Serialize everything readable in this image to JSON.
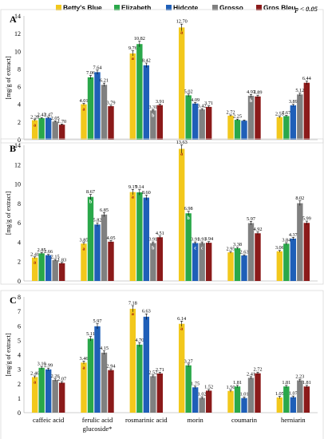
{
  "chart_data": {
    "type": "bar",
    "significance": "p < 0.05",
    "series": [
      {
        "name": "Betty's Blue",
        "color": "#f2c81c"
      },
      {
        "name": "Elizabeth",
        "color": "#2aa84a"
      },
      {
        "name": "Hidcote",
        "color": "#1f5fb8"
      },
      {
        "name": "Grosso",
        "color": "#808080"
      },
      {
        "name": "Gros Bleu",
        "color": "#8b1a1a"
      }
    ],
    "categories": [
      "caffeic acid",
      "ferulic acid glucoside*",
      "rosmarinic acid",
      "morin",
      "coumarin",
      "herniarin"
    ],
    "category_lines": [
      [
        "caffeic acid"
      ],
      [
        "ferulic acid",
        "glucoside*"
      ],
      [
        "rosmarinic acid"
      ],
      [
        "morin"
      ],
      [
        "coumarin"
      ],
      [
        "herniarin"
      ]
    ],
    "panels": [
      {
        "label": "A",
        "ylabel": "[mg/g of extract]",
        "ylim": [
          0,
          14
        ],
        "ticks": [
          "0",
          "2",
          "4",
          "6",
          "8",
          "10",
          "12",
          "14"
        ],
        "values": [
          [
            2.2,
            2.43,
            2.47,
            2.05,
            1.7
          ],
          [
            4.01,
            7.06,
            7.64,
            6.21,
            3.79
          ],
          [
            9.76,
            10.82,
            8.42,
            3.31,
            3.91
          ],
          [
            12.7,
            5.02,
            4.09,
            3.42,
            3.71
          ],
          [
            2.72,
            2.25,
            2.15,
            4.97,
            4.89
          ],
          [
            2.55,
            2.67,
            3.89,
            5.12,
            6.44
          ]
        ],
        "value_labels": [
          [
            "2.20",
            "2.43",
            "2.47",
            "2.05",
            "1.70"
          ],
          [
            "4.01",
            "7.06",
            "7.64",
            "6.21",
            "3.79"
          ],
          [
            "9.76",
            "10.82",
            "8.42",
            "3.31",
            "3.91"
          ],
          [
            "12.70",
            "5.02",
            "4.09",
            "3.42",
            "3.71"
          ],
          [
            "2.72",
            "2.25",
            "",
            "4.97",
            "4.89"
          ],
          [
            "2.55",
            "2.67",
            "3.89",
            "5.12",
            "6.44"
          ]
        ],
        "letters": [
          [
            "a",
            "",
            "",
            "",
            ""
          ],
          [
            "a",
            "",
            "",
            "",
            ""
          ],
          [
            "a",
            "",
            "",
            "b",
            ""
          ],
          [
            "a",
            "",
            "",
            "",
            ""
          ],
          [
            "",
            "",
            "",
            "b",
            ""
          ],
          [
            "",
            "",
            "",
            "",
            ""
          ]
        ]
      },
      {
        "label": "B",
        "ylabel": "[mg/g of extract]",
        "ylim": [
          0,
          14
        ],
        "ticks": [
          "0",
          "2",
          "4",
          "6",
          "8",
          "10",
          "12",
          "14"
        ],
        "values": [
          [
            2.41,
            2.85,
            2.66,
            2.15,
            1.83
          ],
          [
            3.85,
            8.67,
            5.82,
            6.85,
            4.05
          ],
          [
            9.17,
            9.14,
            8.6,
            3.91,
            4.51
          ],
          [
            13.63,
            6.98,
            3.91,
            3.91,
            3.94
          ],
          [
            2.95,
            3.38,
            2.63,
            5.97,
            4.92
          ],
          [
            3.06,
            3.84,
            4.37,
            8.02,
            5.99
          ]
        ],
        "value_labels": [
          [
            "2.41",
            "2.85",
            "2.66",
            "2.15",
            "1.83"
          ],
          [
            "3.85",
            "8.67",
            "5.82",
            "6.85",
            "4.05"
          ],
          [
            "9.17",
            "9.14",
            "8.60",
            "3.91",
            "4.51"
          ],
          [
            "13.63",
            "6.98",
            "3.91",
            "3.91",
            "3.94"
          ],
          [
            "2.95",
            "3.38",
            "2.63",
            "5.97",
            "4.92"
          ],
          [
            "3.06",
            "3.84",
            "4.37",
            "8.02",
            "5.99"
          ]
        ],
        "letters": [
          [
            "a",
            "",
            "",
            "",
            ""
          ],
          [
            "a",
            "b",
            "",
            "",
            ""
          ],
          [
            "a",
            "",
            "",
            "b",
            ""
          ],
          [
            "a",
            "b",
            "c",
            "c",
            ""
          ],
          [
            "",
            "",
            "",
            "",
            ""
          ],
          [
            "",
            "",
            "",
            "",
            ""
          ]
        ]
      },
      {
        "label": "C",
        "ylabel": "[mg/g of extract]",
        "ylim": [
          0,
          8
        ],
        "ticks": [
          "0",
          "1",
          "2",
          "3",
          "4",
          "5",
          "6",
          "7",
          "8"
        ],
        "values": [
          [
            2.46,
            3.1,
            2.99,
            2.26,
            2.07
          ],
          [
            3.46,
            5.11,
            5.97,
            4.15,
            2.94
          ],
          [
            7.18,
            4.7,
            6.63,
            2.52,
            2.71
          ],
          [
            6.14,
            3.27,
            1.75,
            1.02,
            1.52
          ],
          [
            1.5,
            1.81,
            1.01,
            2.41,
            2.72
          ],
          [
            1.05,
            1.81,
            1.07,
            2.23,
            1.81
          ]
        ],
        "value_labels": [
          [
            "2.46",
            "3.10",
            "2.99",
            "2.26",
            "2.07"
          ],
          [
            "3.46",
            "5.11",
            "5.97",
            "4.15",
            "2.94"
          ],
          [
            "7.18",
            "4.70",
            "6.63",
            "2.52",
            "2.71"
          ],
          [
            "6.14",
            "3.27",
            "1.75",
            "1.02",
            "1.52"
          ],
          [
            "1.50",
            "1.81",
            "1.01",
            "2.41",
            "2.72"
          ],
          [
            "1.05",
            "1.81",
            "1.07",
            "2.23",
            "1.81"
          ]
        ],
        "letters": [
          [
            "a",
            "",
            "",
            "",
            ""
          ],
          [
            "a",
            "",
            "",
            "",
            ""
          ],
          [
            "a",
            "",
            "",
            "",
            ""
          ],
          [
            "a",
            "",
            "",
            "",
            ""
          ],
          [
            "",
            "",
            "",
            "",
            ""
          ],
          [
            "",
            "",
            "",
            "",
            ""
          ]
        ]
      }
    ]
  }
}
